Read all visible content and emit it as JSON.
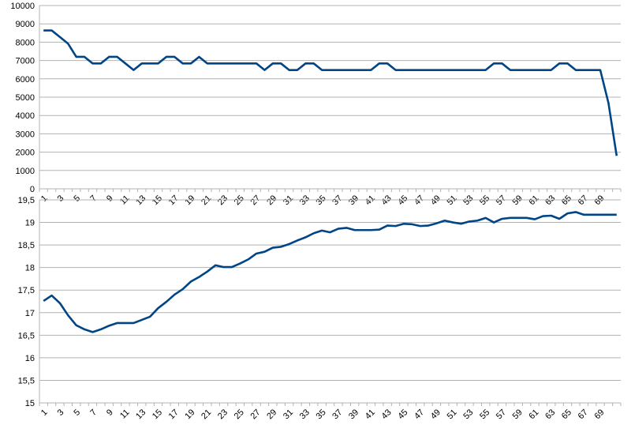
{
  "colors": {
    "series": "#004586",
    "grid": "#b3b3b3",
    "background": "#ffffff"
  },
  "chart_data": [
    {
      "type": "line",
      "title": "",
      "xlabel": "",
      "ylabel": "",
      "ylim": [
        0,
        10000
      ],
      "yticks": [
        "0",
        "1000",
        "2000",
        "3000",
        "4000",
        "5000",
        "6000",
        "7000",
        "8000",
        "9000",
        "10000"
      ],
      "yvalues": [
        0,
        1000,
        2000,
        3000,
        4000,
        5000,
        6000,
        7000,
        8000,
        9000,
        10000
      ],
      "xticks": [
        "1",
        "3",
        "5",
        "7",
        "9",
        "11",
        "13",
        "15",
        "17",
        "19",
        "21",
        "23",
        "25",
        "27",
        "29",
        "31",
        "33",
        "35",
        "37",
        "39",
        "41",
        "43",
        "45",
        "47",
        "49",
        "51",
        "53",
        "55",
        "57",
        "59",
        "61",
        "63",
        "65",
        "67",
        "69"
      ],
      "grid": true,
      "legend": "none",
      "series": [
        {
          "values": [
            8640,
            8640,
            8280,
            7920,
            7200,
            7200,
            6840,
            6840,
            7200,
            7200,
            6840,
            6480,
            6840,
            6840,
            6840,
            7200,
            7200,
            6840,
            6840,
            7200,
            6840,
            6840,
            6840,
            6840,
            6840,
            6840,
            6840,
            6480,
            6840,
            6840,
            6480,
            6480,
            6840,
            6840,
            6480,
            6480,
            6480,
            6480,
            6480,
            6480,
            6480,
            6840,
            6840,
            6480,
            6480,
            6480,
            6480,
            6480,
            6480,
            6480,
            6480,
            6480,
            6480,
            6480,
            6480,
            6840,
            6840,
            6480,
            6480,
            6480,
            6480,
            6480,
            6480,
            6840,
            6840,
            6480,
            6480,
            6480,
            6480,
            4680,
            1800
          ]
        }
      ]
    },
    {
      "type": "line",
      "title": "",
      "xlabel": "",
      "ylabel": "",
      "ylim": [
        15,
        19.5
      ],
      "yticks": [
        "15",
        "15,5",
        "16",
        "16,5",
        "17",
        "17,5",
        "18",
        "18,5",
        "19",
        "19,5"
      ],
      "yvalues": [
        15,
        15.5,
        16,
        16.5,
        17,
        17.5,
        18,
        18.5,
        19,
        19.5
      ],
      "xticks": [
        "1",
        "3",
        "5",
        "7",
        "9",
        "11",
        "13",
        "15",
        "17",
        "19",
        "21",
        "23",
        "25",
        "27",
        "29",
        "31",
        "33",
        "35",
        "37",
        "39",
        "41",
        "43",
        "45",
        "47",
        "49",
        "51",
        "53",
        "55",
        "57",
        "59",
        "61",
        "63",
        "65",
        "67",
        "69"
      ],
      "grid": true,
      "legend": "none",
      "series": [
        {
          "values": [
            17.26,
            17.38,
            17.21,
            16.94,
            16.72,
            16.63,
            16.57,
            16.63,
            16.71,
            16.77,
            16.77,
            16.77,
            16.84,
            16.91,
            17.1,
            17.24,
            17.4,
            17.52,
            17.69,
            17.79,
            17.91,
            18.05,
            18.01,
            18.01,
            18.09,
            18.18,
            18.31,
            18.35,
            18.44,
            18.46,
            18.52,
            18.6,
            18.67,
            18.76,
            18.82,
            18.78,
            18.86,
            18.88,
            18.83,
            18.83,
            18.83,
            18.84,
            18.93,
            18.92,
            18.97,
            18.96,
            18.92,
            18.93,
            18.98,
            19.04,
            19.0,
            18.97,
            19.02,
            19.04,
            19.1,
            19.0,
            19.08,
            19.1,
            19.1,
            19.1,
            19.07,
            19.14,
            19.15,
            19.08,
            19.2,
            19.23,
            19.17,
            19.17,
            19.17,
            19.17,
            19.17
          ]
        }
      ]
    }
  ]
}
